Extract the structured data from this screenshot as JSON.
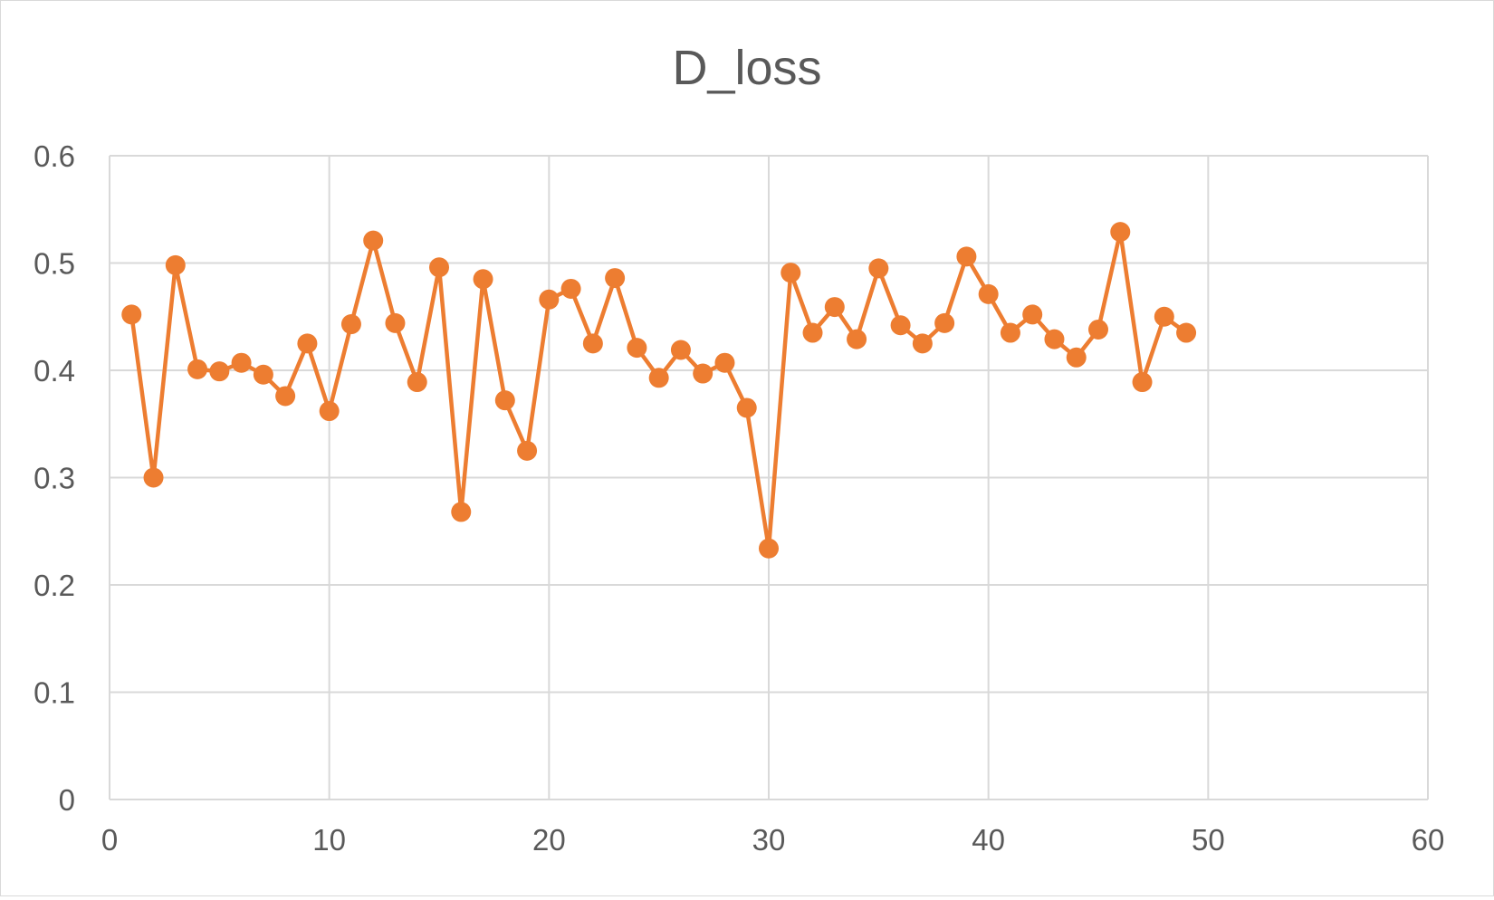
{
  "chart_data": {
    "type": "scatter",
    "title": "D_loss",
    "xlabel": "",
    "ylabel": "",
    "xlim": [
      0,
      60
    ],
    "ylim": [
      0,
      0.6
    ],
    "x_ticks": [
      "0",
      "10",
      "20",
      "30",
      "40",
      "50",
      "60"
    ],
    "y_ticks": [
      "0",
      "0.1",
      "0.2",
      "0.3",
      "0.4",
      "0.5",
      "0.6"
    ],
    "grid": true,
    "legend": "none",
    "markers": "filled-circle",
    "lines": "straight",
    "series_color": "#ED7D31",
    "series": [
      {
        "x": [
          1,
          2,
          3,
          4,
          5,
          6,
          7,
          8,
          9,
          10,
          11,
          12,
          13,
          14,
          15,
          16,
          17,
          18,
          19,
          20,
          21,
          22,
          23,
          24,
          25,
          26,
          27,
          28,
          29,
          30,
          31,
          32,
          33,
          34,
          35,
          36,
          37,
          38,
          39,
          40,
          41,
          42,
          43,
          44,
          45,
          46,
          47,
          48,
          49
        ],
        "y": [
          0.452,
          0.3,
          0.498,
          0.401,
          0.399,
          0.407,
          0.396,
          0.376,
          0.425,
          0.362,
          0.443,
          0.521,
          0.444,
          0.389,
          0.496,
          0.268,
          0.485,
          0.372,
          0.325,
          0.466,
          0.476,
          0.425,
          0.486,
          0.421,
          0.393,
          0.419,
          0.397,
          0.407,
          0.365,
          0.234,
          0.491,
          0.435,
          0.459,
          0.429,
          0.495,
          0.442,
          0.425,
          0.444,
          0.506,
          0.471,
          0.435,
          0.452,
          0.429,
          0.412,
          0.438,
          0.529,
          0.389,
          0.45,
          0.435
        ]
      }
    ]
  },
  "colors": {
    "grid": "#d9d9d9",
    "text": "#595959",
    "background": "#ffffff"
  }
}
